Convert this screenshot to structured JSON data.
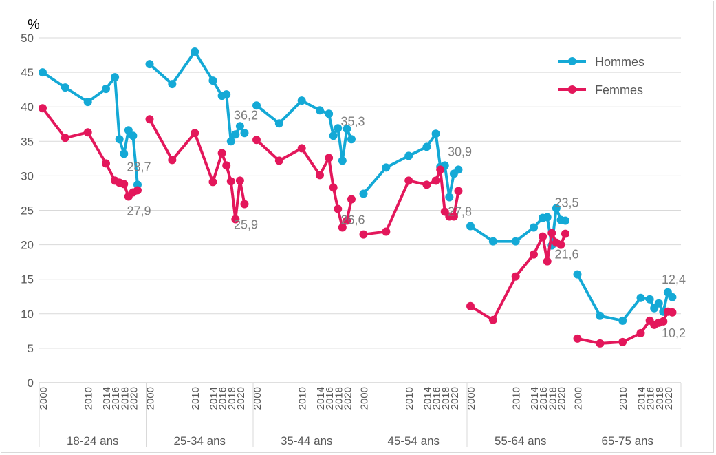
{
  "chart_data": {
    "type": "line",
    "title": "",
    "ylabel": "%",
    "xlabel": "",
    "ylim": [
      0,
      50
    ],
    "yticks": [
      0,
      5,
      10,
      15,
      20,
      25,
      30,
      35,
      40,
      45,
      50
    ],
    "grid": "horizontal",
    "legend_position": "top-right",
    "x_tick_labels": [
      "2000",
      "2010",
      "2014",
      "2016",
      "2018",
      "2020"
    ],
    "years": [
      2000,
      2005,
      2010,
      2014,
      2016,
      2017,
      2018,
      2019,
      2020,
      2021
    ],
    "groups": [
      {
        "label": "18-24 ans",
        "hommes": [
          45.0,
          42.8,
          40.7,
          42.6,
          44.3,
          35.3,
          33.2,
          36.6,
          35.8,
          28.7
        ],
        "femmes": [
          39.8,
          35.5,
          36.3,
          31.8,
          29.3,
          29.0,
          28.8,
          27.0,
          27.6,
          27.9
        ],
        "hommes_label": "28,7",
        "femmes_label": "27,9"
      },
      {
        "label": "25-34 ans",
        "hommes": [
          46.2,
          43.3,
          48.0,
          43.8,
          41.6,
          41.8,
          35.0,
          36.0,
          37.2,
          36.2
        ],
        "femmes": [
          38.2,
          32.3,
          36.2,
          29.1,
          33.3,
          31.5,
          29.2,
          23.7,
          29.3,
          25.9
        ],
        "hommes_label": "36,2",
        "femmes_label": "25,9"
      },
      {
        "label": "35-44 ans",
        "hommes": [
          40.2,
          37.6,
          40.9,
          39.5,
          39.0,
          35.8,
          36.9,
          32.2,
          36.8,
          35.3
        ],
        "femmes": [
          35.2,
          32.2,
          34.0,
          30.1,
          32.6,
          28.3,
          25.2,
          22.5,
          23.5,
          26.6
        ],
        "hommes_label": "35,3",
        "femmes_label": "26,6"
      },
      {
        "label": "45-54 ans",
        "hommes": [
          27.4,
          31.2,
          32.9,
          34.2,
          36.1,
          31.3,
          31.5,
          26.9,
          30.3,
          30.9
        ],
        "femmes": [
          21.5,
          21.9,
          29.3,
          28.7,
          29.3,
          30.9,
          24.8,
          24.1,
          24.1,
          27.8
        ],
        "hommes_label": "30,9",
        "femmes_label": "27,8"
      },
      {
        "label": "55-64 ans",
        "hommes": [
          22.7,
          20.5,
          20.5,
          22.5,
          23.9,
          24.0,
          19.9,
          25.3,
          23.6,
          23.5
        ],
        "femmes": [
          11.1,
          9.1,
          15.4,
          18.6,
          21.2,
          17.6,
          21.7,
          20.3,
          20.0,
          21.6
        ],
        "hommes_label": "23,5",
        "femmes_label": "21,6"
      },
      {
        "label": "65-75 ans",
        "hommes": [
          15.7,
          9.7,
          9.0,
          12.3,
          12.1,
          10.8,
          11.5,
          10.3,
          13.1,
          12.4
        ],
        "femmes": [
          6.4,
          5.7,
          5.9,
          7.2,
          9.0,
          8.4,
          8.7,
          8.9,
          10.3,
          10.2
        ],
        "hommes_label": "12,4",
        "femmes_label": "10,2"
      }
    ],
    "series": [
      {
        "name": "Hommes",
        "key": "hommes",
        "color": "#14A9D6"
      },
      {
        "name": "Femmes",
        "key": "femmes",
        "color": "#E3175B"
      }
    ]
  }
}
